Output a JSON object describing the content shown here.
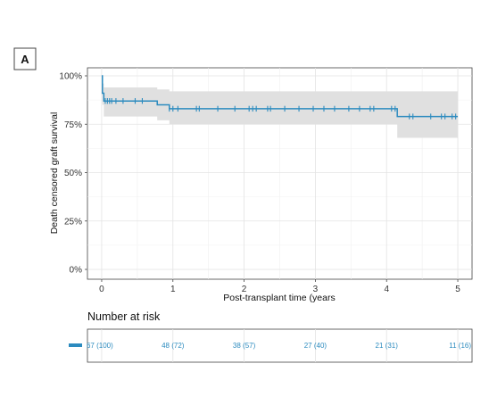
{
  "panel_label": "A",
  "chart_data": {
    "type": "line",
    "subtype": "kaplan-meier",
    "ylabel": "Death censored graft survival",
    "xlabel": "Post-transplant time (years",
    "xlim": [
      -0.2,
      5.2
    ],
    "ylim": [
      0,
      1.0
    ],
    "x_ticks": [
      0,
      1,
      2,
      3,
      4,
      5
    ],
    "y_ticks": [
      {
        "value": 0,
        "label": "0%"
      },
      {
        "value": 0.25,
        "label": "25%"
      },
      {
        "value": 0.5,
        "label": "50%"
      },
      {
        "value": 0.75,
        "label": "75%"
      },
      {
        "value": 1.0,
        "label": "100%"
      }
    ],
    "grid": true,
    "color": "#2c8bbf",
    "ci_color": "#e0e0e0",
    "survival_steps": [
      {
        "x": 0,
        "y": 1.0
      },
      {
        "x": 0.01,
        "y": 0.91
      },
      {
        "x": 0.03,
        "y": 0.87
      },
      {
        "x": 0.78,
        "y": 0.85
      },
      {
        "x": 0.95,
        "y": 0.83
      },
      {
        "x": 4.15,
        "y": 0.79
      },
      {
        "x": 5.0,
        "y": 0.79
      }
    ],
    "ci_upper": [
      {
        "x": 0,
        "y": 1.0
      },
      {
        "x": 0.01,
        "y": 0.96
      },
      {
        "x": 0.03,
        "y": 0.94
      },
      {
        "x": 0.78,
        "y": 0.93
      },
      {
        "x": 0.95,
        "y": 0.92
      },
      {
        "x": 4.15,
        "y": 0.92
      },
      {
        "x": 5.0,
        "y": 0.92
      }
    ],
    "ci_lower": [
      {
        "x": 0,
        "y": 1.0
      },
      {
        "x": 0.01,
        "y": 0.85
      },
      {
        "x": 0.03,
        "y": 0.79
      },
      {
        "x": 0.78,
        "y": 0.77
      },
      {
        "x": 0.95,
        "y": 0.75
      },
      {
        "x": 4.15,
        "y": 0.68
      },
      {
        "x": 5.0,
        "y": 0.68
      }
    ],
    "censor_times": [
      0.05,
      0.08,
      0.11,
      0.14,
      0.2,
      0.3,
      0.47,
      0.57,
      0.95,
      1.0,
      1.07,
      1.33,
      1.37,
      1.63,
      1.87,
      2.07,
      2.12,
      2.17,
      2.33,
      2.37,
      2.57,
      2.77,
      2.97,
      3.12,
      3.27,
      3.47,
      3.62,
      3.77,
      3.82,
      4.07,
      4.12,
      4.32,
      4.37,
      4.62,
      4.77,
      4.82,
      4.92,
      4.97
    ],
    "risk_table": {
      "title": "Number at risk",
      "times": [
        0,
        1,
        2,
        3,
        4,
        5
      ],
      "labels": [
        "67 (100)",
        "48 (72)",
        "38 (57)",
        "27 (40)",
        "21 (31)",
        "11 (16)"
      ]
    }
  }
}
